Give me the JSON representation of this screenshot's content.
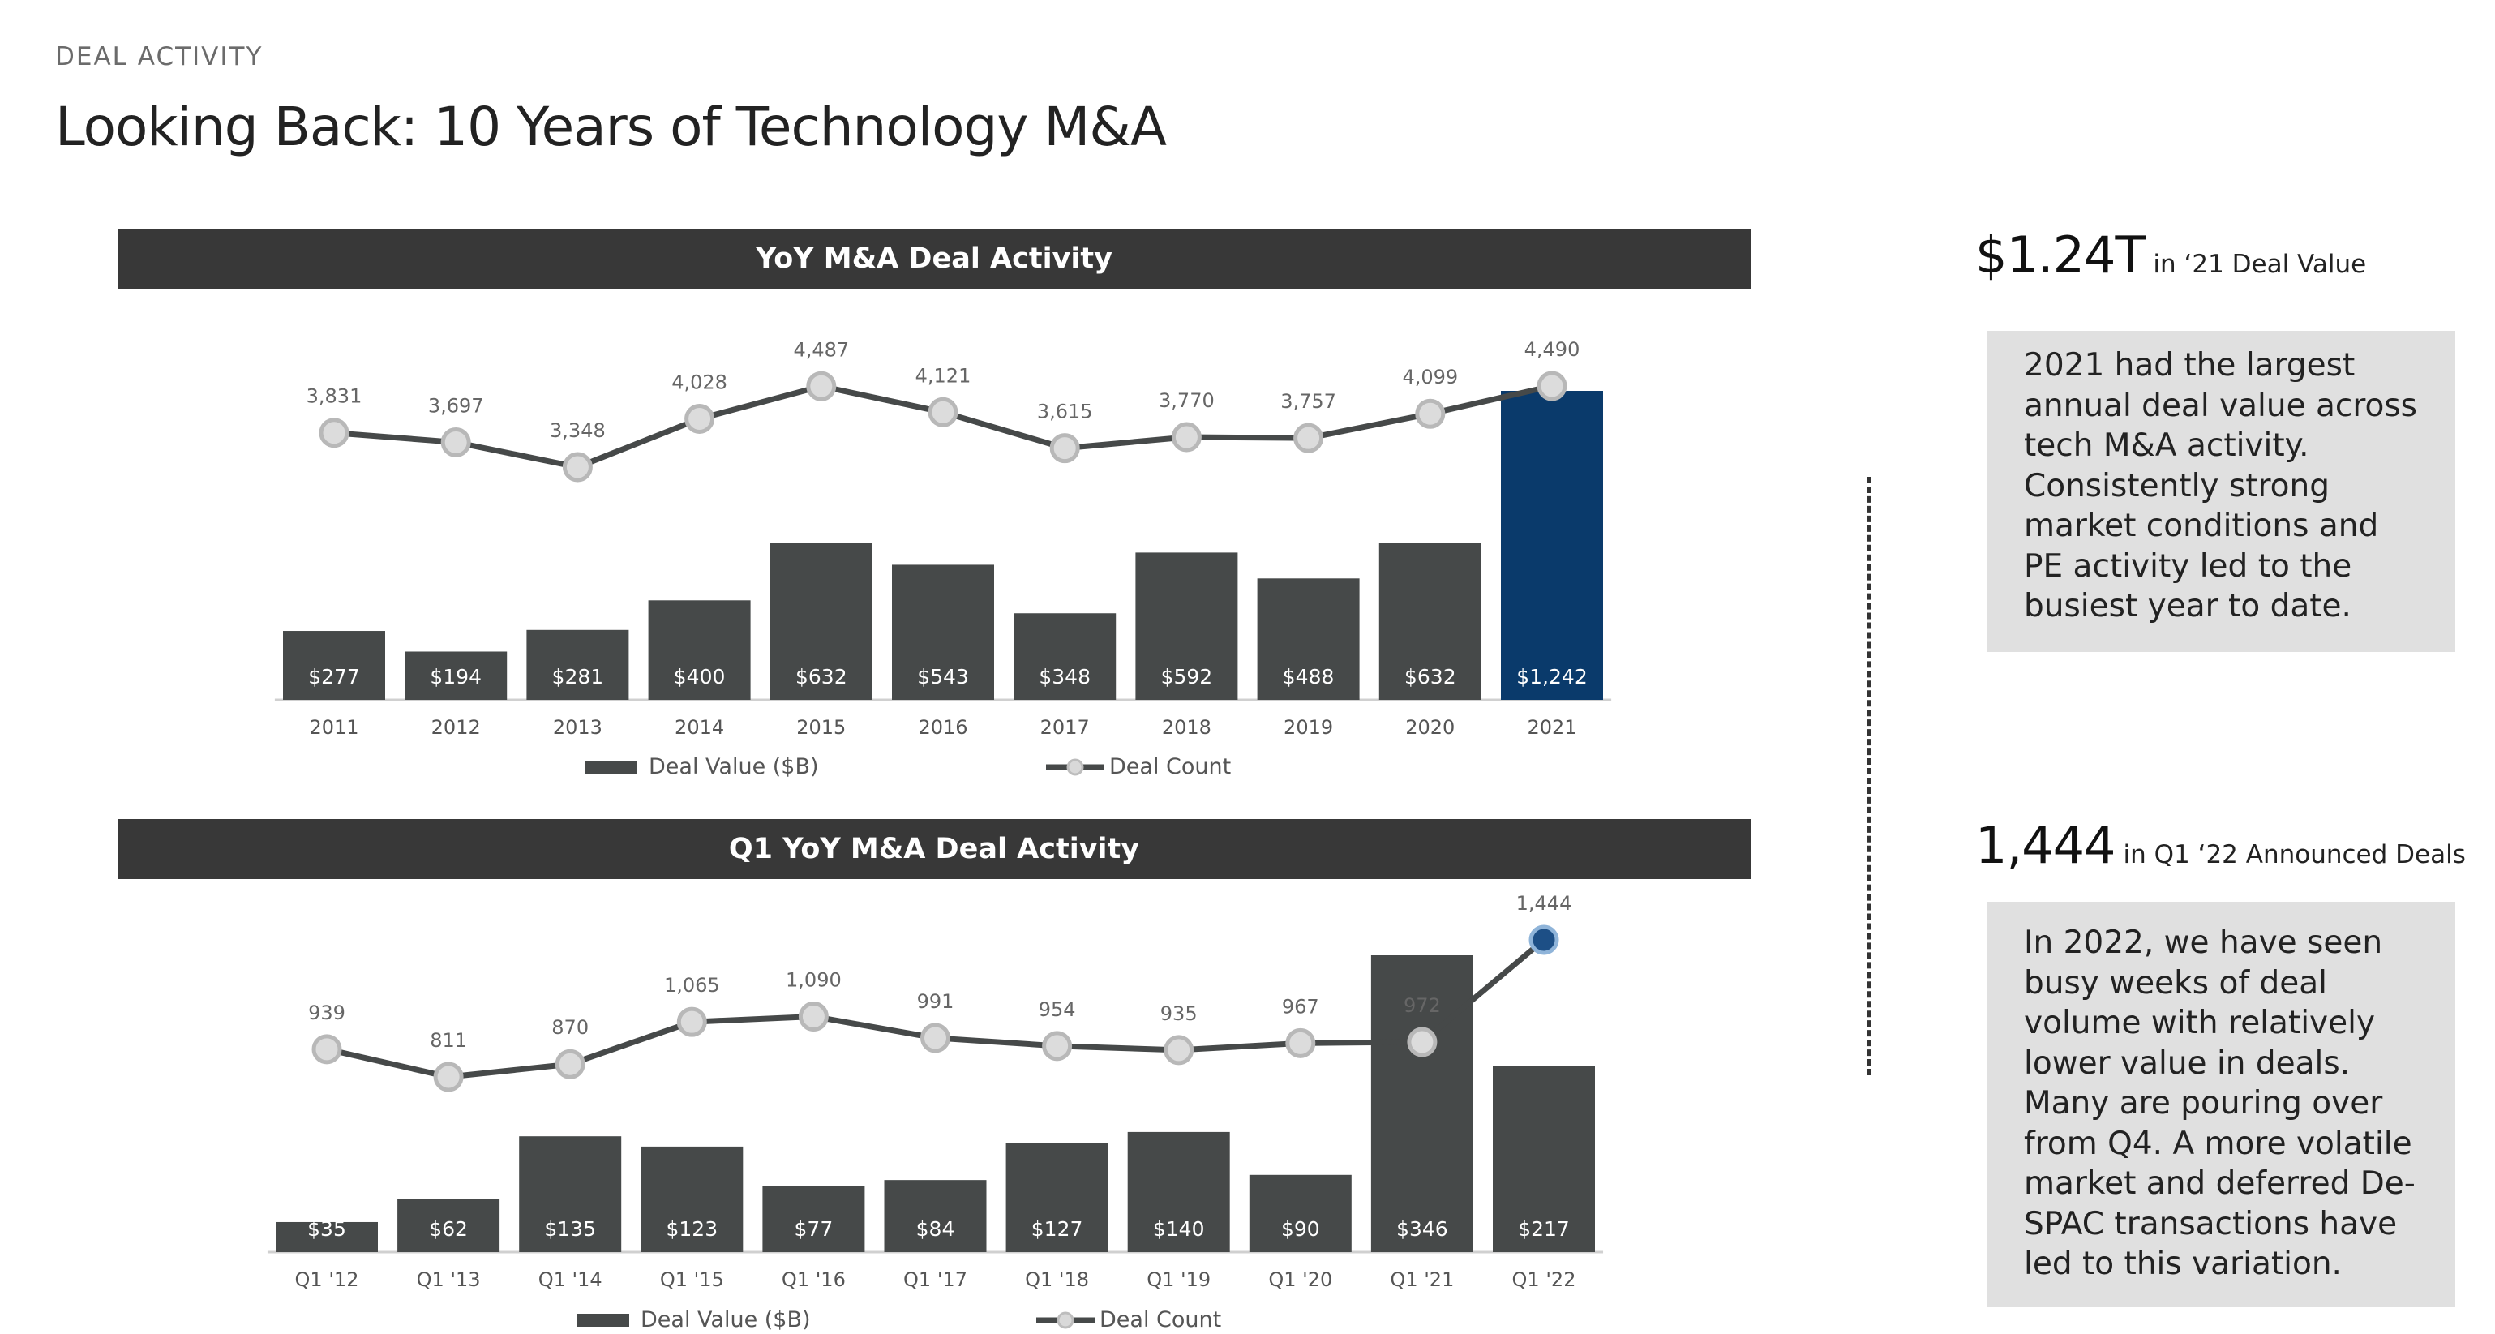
{
  "header": {
    "section_label": "DEAL ACTIVITY",
    "title": "Looking Back: 10 Years of Technology M&A"
  },
  "colors": {
    "bar": "#464949",
    "highlight": "#0a3a6b",
    "line": "#464949",
    "header_bg": "#383838",
    "note_bg": "#e0e0e0"
  },
  "chart_data": [
    {
      "type": "bar",
      "title": "YoY M&A Deal Activity",
      "categories": [
        "2011",
        "2012",
        "2013",
        "2014",
        "2015",
        "2016",
        "2017",
        "2018",
        "2019",
        "2020",
        "2021"
      ],
      "series": [
        {
          "name": "Deal Value ($B)",
          "type": "bar",
          "values": [
            277,
            194,
            281,
            400,
            632,
            543,
            348,
            592,
            488,
            632,
            1242
          ],
          "labels": [
            "$277",
            "$194",
            "$281",
            "$400",
            "$632",
            "$543",
            "$348",
            "$592",
            "$488",
            "$632",
            "$1,242"
          ],
          "highlight_index": 10
        },
        {
          "name": "Deal Count",
          "type": "line",
          "values": [
            3831,
            3697,
            3348,
            4028,
            4487,
            4121,
            3615,
            3770,
            3757,
            4099,
            4490
          ],
          "labels": [
            "3,831",
            "3,697",
            "3,348",
            "4,028",
            "4,487",
            "4,121",
            "3,615",
            "3,770",
            "3,757",
            "4,099",
            "4,490"
          ]
        }
      ],
      "legend": "bottom"
    },
    {
      "type": "bar",
      "title": "Q1 YoY M&A Deal Activity",
      "categories": [
        "Q1 '12",
        "Q1 '13",
        "Q1 '14",
        "Q1 '15",
        "Q1 '16",
        "Q1 '17",
        "Q1 '18",
        "Q1 '19",
        "Q1 '20",
        "Q1 '21",
        "Q1 '22"
      ],
      "series": [
        {
          "name": "Deal Value ($B)",
          "type": "bar",
          "values": [
            35,
            62,
            135,
            123,
            77,
            84,
            127,
            140,
            90,
            346,
            217
          ],
          "labels": [
            "$35",
            "$62",
            "$135",
            "$123",
            "$77",
            "$84",
            "$127",
            "$140",
            "$90",
            "$346",
            "$217"
          ]
        },
        {
          "name": "Deal Count",
          "type": "line",
          "values": [
            939,
            811,
            870,
            1065,
            1090,
            991,
            954,
            935,
            967,
            972,
            1444
          ],
          "labels": [
            "939",
            "811",
            "870",
            "1,065",
            "1,090",
            "991",
            "954",
            "935",
            "967",
            "972",
            "1,444"
          ],
          "highlight_index": 10
        }
      ],
      "legend": "bottom"
    }
  ],
  "stats": [
    {
      "value": "$1.24T",
      "caption": "in ‘21 Deal Value"
    },
    {
      "value": "1,444",
      "caption": "in Q1 ‘22 Announced Deals"
    }
  ],
  "notes": [
    "2021 had the largest annual deal value across tech M&A activity. Consistently strong market conditions and PE activity led to the busiest year to date.",
    "In 2022, we have seen busy weeks of deal volume with relatively lower value in deals. Many are pouring over from Q4. A more volatile market and deferred De-SPAC transactions have led to this variation."
  ]
}
